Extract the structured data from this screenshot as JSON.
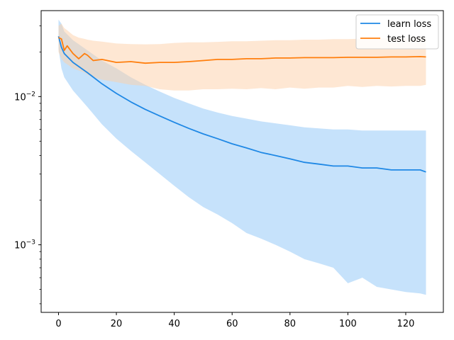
{
  "chart_data": {
    "type": "line",
    "title": "",
    "xlabel": "",
    "ylabel": "",
    "xlim": [
      -6,
      133
    ],
    "ylim": [
      0.00035,
      0.038
    ],
    "yscale": "log",
    "grid": false,
    "legend_position": "top-right",
    "x_ticks": [
      0,
      20,
      40,
      60,
      80,
      100,
      120
    ],
    "x_tick_labels": [
      "0",
      "20",
      "40",
      "60",
      "80",
      "100",
      "120"
    ],
    "y_major_ticks": [
      0.001,
      0.01
    ],
    "y_tick_labels": [
      {
        "base": "10",
        "exp": "−3"
      },
      {
        "base": "10",
        "exp": "−2"
      }
    ],
    "series": [
      {
        "name": "learn loss",
        "color": "#1f77b4",
        "line_color": "#1f88e5",
        "band_color": "#8ec5f8",
        "x": [
          0,
          1,
          2,
          5,
          10,
          15,
          20,
          25,
          30,
          35,
          40,
          45,
          50,
          55,
          60,
          65,
          70,
          75,
          80,
          85,
          90,
          95,
          100,
          105,
          110,
          115,
          120,
          125,
          127
        ],
        "mean": [
          0.0255,
          0.0215,
          0.0195,
          0.017,
          0.0145,
          0.0122,
          0.0105,
          0.0092,
          0.0082,
          0.0074,
          0.0067,
          0.0061,
          0.0056,
          0.0052,
          0.0048,
          0.0045,
          0.0042,
          0.004,
          0.0038,
          0.0036,
          0.0035,
          0.0034,
          0.0034,
          0.0033,
          0.0033,
          0.0032,
          0.0032,
          0.0032,
          0.0031
        ],
        "lower": [
          0.021,
          0.0155,
          0.0135,
          0.011,
          0.0085,
          0.0065,
          0.0052,
          0.0043,
          0.0036,
          0.003,
          0.0025,
          0.0021,
          0.0018,
          0.0016,
          0.0014,
          0.0012,
          0.0011,
          0.001,
          0.0009,
          0.0008,
          0.00075,
          0.0007,
          0.00055,
          0.0006,
          0.00052,
          0.0005,
          0.00048,
          0.00047,
          0.00046
        ],
        "upper": [
          0.033,
          0.031,
          0.0275,
          0.024,
          0.0205,
          0.0175,
          0.0155,
          0.0135,
          0.012,
          0.0108,
          0.0098,
          0.009,
          0.0083,
          0.0078,
          0.0074,
          0.0071,
          0.0068,
          0.0066,
          0.0064,
          0.0062,
          0.0061,
          0.006,
          0.006,
          0.0059,
          0.0059,
          0.0059,
          0.0059,
          0.0059,
          0.0059
        ]
      },
      {
        "name": "test loss",
        "color": "#ff7f0e",
        "line_color": "#ff7f0e",
        "band_color": "#fdd0a8",
        "x": [
          0,
          1,
          2,
          3,
          5,
          7,
          9,
          10,
          12,
          15,
          20,
          25,
          30,
          35,
          40,
          45,
          50,
          55,
          60,
          65,
          70,
          75,
          80,
          85,
          90,
          95,
          100,
          105,
          110,
          115,
          120,
          125,
          127
        ],
        "mean": [
          0.025,
          0.0245,
          0.0205,
          0.022,
          0.0195,
          0.018,
          0.0195,
          0.019,
          0.0175,
          0.0178,
          0.017,
          0.0172,
          0.0168,
          0.017,
          0.017,
          0.0172,
          0.0175,
          0.0178,
          0.0178,
          0.018,
          0.018,
          0.0182,
          0.0182,
          0.0183,
          0.0183,
          0.0183,
          0.0184,
          0.0184,
          0.0184,
          0.0185,
          0.0185,
          0.0186,
          0.0185
        ],
        "lower": [
          0.02,
          0.018,
          0.017,
          0.0165,
          0.0155,
          0.015,
          0.0145,
          0.014,
          0.0135,
          0.013,
          0.0125,
          0.012,
          0.0118,
          0.0112,
          0.011,
          0.011,
          0.0112,
          0.0112,
          0.0113,
          0.0112,
          0.0114,
          0.0112,
          0.0115,
          0.0113,
          0.0115,
          0.0115,
          0.0118,
          0.0116,
          0.0118,
          0.0117,
          0.0118,
          0.0118,
          0.012
        ],
        "upper": [
          0.03,
          0.031,
          0.029,
          0.028,
          0.026,
          0.025,
          0.0245,
          0.0242,
          0.0238,
          0.0235,
          0.0228,
          0.0226,
          0.0225,
          0.0226,
          0.023,
          0.0232,
          0.0232,
          0.0234,
          0.0236,
          0.0236,
          0.0238,
          0.024,
          0.024,
          0.0242,
          0.0242,
          0.0244,
          0.0244,
          0.0246,
          0.0246,
          0.0248,
          0.0248,
          0.025,
          0.025
        ]
      }
    ]
  }
}
